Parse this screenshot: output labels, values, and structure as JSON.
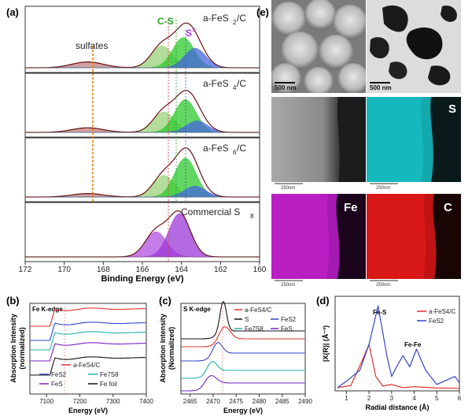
{
  "panel_labels": {
    "a": "(a)",
    "b": "(b)",
    "c": "(c)",
    "d": "(d)",
    "e": "(e)"
  },
  "chart_data": [
    {
      "id": "a",
      "type": "line",
      "xlabel": "Binding Energy (eV)",
      "xlim": [
        172,
        160
      ],
      "xticks": [
        172,
        170,
        168,
        166,
        164,
        162,
        160
      ],
      "subpanels": [
        "a-FeS2/C",
        "a-FeS4/C",
        "a-FeS6/C",
        "Commercial S8"
      ],
      "annotations": [
        "sulfates",
        "C-S",
        "S",
        "a-FeS",
        "/C",
        "Commercial S",
        "2",
        "4",
        "6",
        "8",
        "2-"
      ],
      "series": [
        {
          "name": "a-FeS2/C",
          "peaks": [
            [
              168.8,
              0.12
            ],
            [
              165.0,
              0.45
            ],
            [
              163.9,
              0.62
            ],
            [
              163.3,
              0.4
            ]
          ]
        },
        {
          "name": "a-FeS4/C",
          "peaks": [
            [
              168.8,
              0.1
            ],
            [
              164.9,
              0.45
            ],
            [
              163.8,
              0.72
            ],
            [
              163.2,
              0.25
            ]
          ]
        },
        {
          "name": "a-FeS6/C",
          "peaks": [
            [
              168.8,
              0.08
            ],
            [
              164.9,
              0.5
            ],
            [
              163.8,
              0.9
            ],
            [
              163.3,
              0.25
            ]
          ]
        },
        {
          "name": "Commercial S8",
          "peaks": [
            [
              165.3,
              0.55
            ],
            [
              164.1,
              0.95
            ]
          ]
        }
      ]
    },
    {
      "id": "b",
      "type": "line",
      "title": "Fe K-edge",
      "xlabel": "Energy (eV)",
      "ylabel": "Absorption Intensity (normalized)",
      "xlim": [
        7050,
        7400
      ],
      "xticks": [
        7100,
        7200,
        7300,
        7400
      ],
      "legend": [
        {
          "label": "a-FeS4/C",
          "color": "#e03030"
        },
        {
          "label": "FeS2",
          "color": "#3344cc"
        },
        {
          "label": "Fe7S8",
          "color": "#22b3a8"
        },
        {
          "label": "FeS",
          "color": "#7a20c0"
        },
        {
          "label": "Fe foil",
          "color": "#111111"
        }
      ]
    },
    {
      "id": "c",
      "type": "line",
      "title": "S K-edge",
      "xlabel": "Energy (eV)",
      "ylabel": "Absorption Intensity (Normalized)",
      "xlim": [
        2463,
        2490
      ],
      "xticks": [
        2465,
        2470,
        2475,
        2480,
        2485,
        2490
      ],
      "legend": [
        {
          "label": "a-FeS4/C",
          "color": "#e03030"
        },
        {
          "label": "S",
          "color": "#111111"
        },
        {
          "label": "FeS2",
          "color": "#3344cc"
        },
        {
          "label": "Fe7S8",
          "color": "#22b3a8"
        },
        {
          "label": "FeS",
          "color": "#7a20c0"
        }
      ]
    },
    {
      "id": "d",
      "type": "line",
      "xlabel": "Radial distance (Å)",
      "ylabel": "|X(R)| (Å⁻³)",
      "xlim": [
        0.5,
        6
      ],
      "xticks": [
        1,
        2,
        3,
        4,
        5,
        6
      ],
      "annotations": [
        "Fe-S",
        "Fe-Fe"
      ],
      "series": [
        {
          "name": "a-FeS4/C",
          "color": "#e03030",
          "points": [
            [
              0.6,
              0.05
            ],
            [
              1.2,
              0.12
            ],
            [
              1.7,
              0.9
            ],
            [
              2.0,
              1.4
            ],
            [
              2.3,
              0.4
            ],
            [
              2.6,
              0.1
            ],
            [
              3.0,
              0.15
            ],
            [
              3.5,
              0.05
            ],
            [
              4.0,
              0.08
            ],
            [
              5.0,
              0.04
            ],
            [
              6.0,
              0.03
            ]
          ]
        },
        {
          "name": "FeS2",
          "color": "#3344cc",
          "points": [
            [
              0.6,
              0.05
            ],
            [
              1.0,
              0.25
            ],
            [
              1.6,
              0.6
            ],
            [
              2.0,
              1.4
            ],
            [
              2.4,
              2.6
            ],
            [
              2.8,
              1.0
            ],
            [
              3.0,
              0.4
            ],
            [
              3.3,
              0.8
            ],
            [
              3.5,
              1.05
            ],
            [
              3.8,
              0.7
            ],
            [
              4.1,
              1.25
            ],
            [
              4.5,
              0.6
            ],
            [
              5.0,
              0.15
            ],
            [
              5.8,
              0.4
            ],
            [
              6.0,
              0.2
            ]
          ]
        }
      ]
    }
  ],
  "microscopy": {
    "scale_labels": [
      "500 nm",
      "500 nm",
      "250nm",
      "250nm",
      "250nm",
      "250nm"
    ],
    "map_labels": [
      "S",
      "Fe",
      "C"
    ],
    "colors": {
      "S": "#19c4c8",
      "Fe": "#c020c8",
      "C": "#e01818"
    }
  }
}
